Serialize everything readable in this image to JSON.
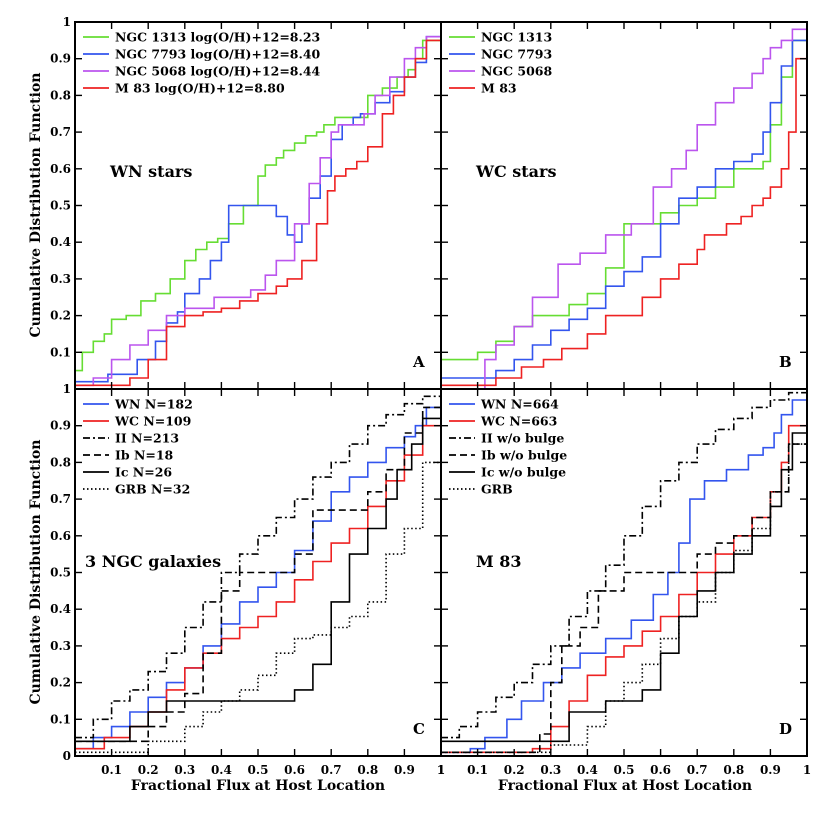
{
  "figure": {
    "ylabel": "Cumulative Distribution Function",
    "xlabel": "Fractional Flux at Host Location"
  },
  "colors": {
    "green": "#66dd33",
    "blue": "#3355ee",
    "purple": "#bb55ee",
    "red": "#ee2222",
    "black": "#000000"
  },
  "chart_data": [
    {
      "type": "line",
      "id": "A",
      "letter": "A",
      "title": "WN stars",
      "xlim": [
        0,
        1
      ],
      "ylim": [
        0,
        1
      ],
      "series": [
        {
          "name": "NGC 1313",
          "legend": "NGC 1313  log(O/H)+12=8.23",
          "color": "green",
          "dash": "solid",
          "x": [
            0,
            0.02,
            0.05,
            0.08,
            0.1,
            0.14,
            0.18,
            0.22,
            0.26,
            0.3,
            0.33,
            0.36,
            0.39,
            0.42,
            0.46,
            0.5,
            0.52,
            0.55,
            0.57,
            0.6,
            0.63,
            0.66,
            0.68,
            0.71,
            0.75,
            0.8,
            0.84,
            0.88,
            0.91,
            0.93,
            0.95,
            1
          ],
          "y": [
            0.05,
            0.1,
            0.13,
            0.15,
            0.19,
            0.2,
            0.24,
            0.26,
            0.3,
            0.35,
            0.38,
            0.4,
            0.41,
            0.45,
            0.5,
            0.58,
            0.61,
            0.63,
            0.65,
            0.67,
            0.69,
            0.7,
            0.72,
            0.74,
            0.74,
            0.8,
            0.82,
            0.85,
            0.87,
            0.9,
            0.95,
            1
          ]
        },
        {
          "name": "NGC 7793",
          "legend": "NGC 7793  log(O/H)+12=8.40",
          "color": "blue",
          "dash": "solid",
          "x": [
            0,
            0.09,
            0.17,
            0.22,
            0.25,
            0.28,
            0.3,
            0.34,
            0.37,
            0.4,
            0.42,
            0.49,
            0.52,
            0.55,
            0.58,
            0.6,
            0.62,
            0.64,
            0.67,
            0.7,
            0.73,
            0.76,
            0.78,
            0.82,
            0.86,
            0.9,
            0.93,
            0.96,
            1
          ],
          "y": [
            0.02,
            0.04,
            0.08,
            0.13,
            0.18,
            0.21,
            0.26,
            0.3,
            0.35,
            0.4,
            0.5,
            0.5,
            0.5,
            0.47,
            0.42,
            0.4,
            0.45,
            0.52,
            0.58,
            0.68,
            0.72,
            0.74,
            0.75,
            0.78,
            0.81,
            0.85,
            0.89,
            0.96,
            1
          ]
        },
        {
          "name": "NGC 5068",
          "legend": "NGC 5068  log(O/H)+12=8.44",
          "color": "purple",
          "dash": "solid",
          "x": [
            0,
            0.05,
            0.1,
            0.15,
            0.2,
            0.25,
            0.3,
            0.38,
            0.45,
            0.48,
            0.52,
            0.55,
            0.6,
            0.64,
            0.67,
            0.7,
            0.72,
            0.76,
            0.79,
            0.82,
            0.86,
            0.9,
            0.93,
            0.96,
            1
          ],
          "y": [
            0.01,
            0.03,
            0.08,
            0.12,
            0.16,
            0.2,
            0.22,
            0.25,
            0.25,
            0.27,
            0.31,
            0.35,
            0.45,
            0.56,
            0.63,
            0.7,
            0.72,
            0.72,
            0.75,
            0.8,
            0.85,
            0.9,
            0.93,
            0.96,
            1
          ]
        },
        {
          "name": "M 83",
          "legend": "M 83  log(O/H)+12=8.80",
          "color": "red",
          "dash": "solid",
          "x": [
            0,
            0.15,
            0.2,
            0.25,
            0.3,
            0.35,
            0.4,
            0.45,
            0.5,
            0.55,
            0.58,
            0.62,
            0.66,
            0.69,
            0.71,
            0.74,
            0.77,
            0.8,
            0.84,
            0.87,
            0.9,
            0.93,
            0.96,
            1
          ],
          "y": [
            0.01,
            0.03,
            0.08,
            0.17,
            0.2,
            0.21,
            0.22,
            0.24,
            0.26,
            0.28,
            0.3,
            0.35,
            0.45,
            0.54,
            0.58,
            0.6,
            0.62,
            0.66,
            0.75,
            0.8,
            0.85,
            0.9,
            0.95,
            1
          ]
        }
      ]
    },
    {
      "type": "line",
      "id": "B",
      "letter": "B",
      "title": "WC stars",
      "xlim": [
        0,
        1
      ],
      "ylim": [
        0,
        1
      ],
      "series": [
        {
          "name": "NGC 1313",
          "legend": "NGC 1313",
          "color": "green",
          "dash": "solid",
          "x": [
            0,
            0.02,
            0.1,
            0.15,
            0.2,
            0.25,
            0.3,
            0.35,
            0.4,
            0.45,
            0.5,
            0.55,
            0.6,
            0.65,
            0.7,
            0.75,
            0.8,
            0.85,
            0.88,
            0.9,
            0.93,
            0.96,
            1
          ],
          "y": [
            0.08,
            0.08,
            0.1,
            0.13,
            0.17,
            0.2,
            0.2,
            0.23,
            0.26,
            0.33,
            0.45,
            0.45,
            0.48,
            0.5,
            0.52,
            0.55,
            0.6,
            0.6,
            0.62,
            0.72,
            0.85,
            0.95,
            1
          ]
        },
        {
          "name": "NGC 7793",
          "legend": "NGC 7793",
          "color": "blue",
          "dash": "solid",
          "x": [
            0,
            0.15,
            0.2,
            0.25,
            0.3,
            0.35,
            0.4,
            0.45,
            0.5,
            0.55,
            0.6,
            0.65,
            0.7,
            0.75,
            0.8,
            0.85,
            0.88,
            0.9,
            0.93,
            0.96,
            1
          ],
          "y": [
            0.03,
            0.05,
            0.08,
            0.12,
            0.16,
            0.19,
            0.22,
            0.28,
            0.32,
            0.36,
            0.45,
            0.52,
            0.55,
            0.6,
            0.62,
            0.64,
            0.7,
            0.78,
            0.88,
            0.95,
            1
          ]
        },
        {
          "name": "NGC 5068",
          "legend": "NGC 5068",
          "color": "purple",
          "dash": "solid",
          "x": [
            0,
            0.12,
            0.15,
            0.2,
            0.25,
            0.32,
            0.38,
            0.45,
            0.52,
            0.58,
            0.63,
            0.67,
            0.7,
            0.75,
            0.8,
            0.85,
            0.88,
            0.9,
            0.93,
            0.96,
            1
          ],
          "y": [
            0,
            0.08,
            0.12,
            0.17,
            0.25,
            0.34,
            0.37,
            0.42,
            0.45,
            0.55,
            0.6,
            0.65,
            0.72,
            0.78,
            0.82,
            0.86,
            0.9,
            0.93,
            0.95,
            0.98,
            1
          ]
        },
        {
          "name": "M 83",
          "legend": "M 83",
          "color": "red",
          "dash": "solid",
          "x": [
            0,
            0.15,
            0.22,
            0.28,
            0.33,
            0.4,
            0.45,
            0.55,
            0.6,
            0.65,
            0.7,
            0.72,
            0.78,
            0.82,
            0.85,
            0.88,
            0.9,
            0.93,
            0.95,
            0.97,
            1
          ],
          "y": [
            0.01,
            0.03,
            0.06,
            0.08,
            0.11,
            0.15,
            0.2,
            0.25,
            0.3,
            0.34,
            0.38,
            0.42,
            0.45,
            0.47,
            0.5,
            0.52,
            0.55,
            0.6,
            0.7,
            0.9,
            1
          ]
        }
      ]
    },
    {
      "type": "line",
      "id": "C",
      "letter": "C",
      "title": "3 NGC galaxies",
      "xlim": [
        0,
        1
      ],
      "ylim": [
        0,
        1
      ],
      "series": [
        {
          "name": "WN",
          "legend": "WN   N=182",
          "color": "blue",
          "dash": "solid",
          "x": [
            0,
            0.05,
            0.1,
            0.15,
            0.2,
            0.25,
            0.3,
            0.35,
            0.4,
            0.45,
            0.5,
            0.55,
            0.6,
            0.65,
            0.7,
            0.75,
            0.8,
            0.85,
            0.9,
            0.93,
            0.96,
            1
          ],
          "y": [
            0.02,
            0.05,
            0.08,
            0.12,
            0.16,
            0.2,
            0.24,
            0.3,
            0.36,
            0.42,
            0.46,
            0.5,
            0.56,
            0.64,
            0.72,
            0.76,
            0.8,
            0.84,
            0.87,
            0.9,
            0.95,
            1
          ]
        },
        {
          "name": "WC",
          "legend": "WC   N=109",
          "color": "red",
          "dash": "solid",
          "x": [
            0,
            0.08,
            0.15,
            0.2,
            0.25,
            0.3,
            0.35,
            0.4,
            0.45,
            0.5,
            0.55,
            0.6,
            0.65,
            0.7,
            0.75,
            0.8,
            0.85,
            0.9,
            0.95,
            1
          ],
          "y": [
            0.02,
            0.05,
            0.08,
            0.12,
            0.18,
            0.24,
            0.28,
            0.32,
            0.35,
            0.38,
            0.42,
            0.48,
            0.53,
            0.58,
            0.62,
            0.68,
            0.75,
            0.82,
            0.9,
            1
          ]
        },
        {
          "name": "II",
          "legend": "II     N=213",
          "color": "black",
          "dash": "dashdot",
          "x": [
            0,
            0.05,
            0.1,
            0.15,
            0.2,
            0.25,
            0.3,
            0.35,
            0.4,
            0.45,
            0.5,
            0.55,
            0.6,
            0.65,
            0.7,
            0.75,
            0.8,
            0.85,
            0.9,
            0.95,
            1
          ],
          "y": [
            0.05,
            0.1,
            0.15,
            0.18,
            0.23,
            0.28,
            0.35,
            0.42,
            0.5,
            0.55,
            0.6,
            0.65,
            0.7,
            0.76,
            0.8,
            0.85,
            0.9,
            0.93,
            0.96,
            0.98,
            1
          ]
        },
        {
          "name": "Ib",
          "legend": "Ib     N=18",
          "color": "black",
          "dash": "dashed",
          "x": [
            0,
            0.15,
            0.2,
            0.25,
            0.3,
            0.35,
            0.4,
            0.45,
            0.55,
            0.6,
            0.65,
            0.7,
            0.75,
            0.8,
            0.85,
            0.9,
            0.95,
            1
          ],
          "y": [
            0.04,
            0.04,
            0.08,
            0.12,
            0.17,
            0.28,
            0.45,
            0.5,
            0.5,
            0.55,
            0.67,
            0.67,
            0.67,
            0.72,
            0.78,
            0.88,
            0.95,
            1
          ]
        },
        {
          "name": "Ic",
          "legend": "Ic      N=26",
          "color": "black",
          "dash": "solid",
          "x": [
            0,
            0.1,
            0.15,
            0.2,
            0.25,
            0.3,
            0.4,
            0.5,
            0.6,
            0.65,
            0.7,
            0.75,
            0.8,
            0.85,
            0.88,
            0.92,
            0.95,
            1
          ],
          "y": [
            0.04,
            0.04,
            0.08,
            0.12,
            0.15,
            0.15,
            0.15,
            0.15,
            0.18,
            0.25,
            0.42,
            0.55,
            0.62,
            0.7,
            0.78,
            0.85,
            0.92,
            1
          ]
        },
        {
          "name": "GRB",
          "legend": "GRB   N=32",
          "color": "black",
          "dash": "dotted",
          "x": [
            0,
            0.2,
            0.3,
            0.35,
            0.4,
            0.45,
            0.5,
            0.55,
            0.6,
            0.65,
            0.7,
            0.75,
            0.8,
            0.85,
            0.9,
            0.95,
            1
          ],
          "y": [
            0.01,
            0.04,
            0.08,
            0.12,
            0.15,
            0.18,
            0.22,
            0.28,
            0.32,
            0.33,
            0.35,
            0.38,
            0.42,
            0.55,
            0.62,
            0.8,
            1
          ]
        }
      ]
    },
    {
      "type": "line",
      "id": "D",
      "letter": "D",
      "title": "M 83",
      "xlim": [
        0,
        1
      ],
      "ylim": [
        0,
        1
      ],
      "series": [
        {
          "name": "WN",
          "legend": "WN   N=664",
          "color": "blue",
          "dash": "solid",
          "x": [
            0,
            0.08,
            0.12,
            0.18,
            0.22,
            0.28,
            0.33,
            0.38,
            0.45,
            0.52,
            0.58,
            0.62,
            0.65,
            0.68,
            0.72,
            0.78,
            0.84,
            0.88,
            0.91,
            0.93,
            0.96,
            1
          ],
          "y": [
            0.01,
            0.02,
            0.05,
            0.1,
            0.15,
            0.2,
            0.24,
            0.28,
            0.32,
            0.37,
            0.44,
            0.5,
            0.58,
            0.7,
            0.75,
            0.78,
            0.82,
            0.84,
            0.88,
            0.93,
            0.97,
            1
          ]
        },
        {
          "name": "WC",
          "legend": "WC   N=663",
          "color": "red",
          "dash": "solid",
          "x": [
            0,
            0.25,
            0.3,
            0.35,
            0.4,
            0.45,
            0.5,
            0.55,
            0.6,
            0.65,
            0.7,
            0.75,
            0.8,
            0.85,
            0.9,
            0.93,
            0.95,
            1
          ],
          "y": [
            0.01,
            0.02,
            0.08,
            0.15,
            0.22,
            0.27,
            0.3,
            0.34,
            0.38,
            0.44,
            0.5,
            0.55,
            0.6,
            0.65,
            0.72,
            0.8,
            0.9,
            1
          ]
        },
        {
          "name": "II w/o bulge",
          "legend": "II w/o bulge",
          "color": "black",
          "dash": "dashdot",
          "x": [
            0,
            0.05,
            0.1,
            0.15,
            0.2,
            0.25,
            0.3,
            0.35,
            0.4,
            0.45,
            0.5,
            0.55,
            0.6,
            0.65,
            0.7,
            0.75,
            0.8,
            0.85,
            0.9,
            0.95,
            1
          ],
          "y": [
            0.05,
            0.08,
            0.12,
            0.16,
            0.2,
            0.25,
            0.3,
            0.38,
            0.45,
            0.52,
            0.6,
            0.68,
            0.75,
            0.8,
            0.85,
            0.89,
            0.92,
            0.95,
            0.97,
            0.99,
            1
          ]
        },
        {
          "name": "Ib w/o bulge",
          "legend": "Ib w/o bulge",
          "color": "black",
          "dash": "dashed",
          "x": [
            0,
            0.27,
            0.3,
            0.33,
            0.38,
            0.43,
            0.5,
            0.58,
            0.65,
            0.7,
            0.75,
            0.8,
            0.85,
            0.9,
            0.95,
            1
          ],
          "y": [
            0.01,
            0.06,
            0.2,
            0.3,
            0.35,
            0.45,
            0.5,
            0.5,
            0.5,
            0.55,
            0.58,
            0.6,
            0.65,
            0.72,
            0.85,
            1
          ]
        },
        {
          "name": "Ic w/o bulge",
          "legend": "Ic w/o bulge",
          "color": "black",
          "dash": "solid",
          "x": [
            0,
            0.2,
            0.35,
            0.4,
            0.45,
            0.5,
            0.55,
            0.6,
            0.65,
            0.7,
            0.75,
            0.8,
            0.85,
            0.9,
            0.93,
            0.96,
            1
          ],
          "y": [
            0.04,
            0.04,
            0.12,
            0.12,
            0.15,
            0.15,
            0.18,
            0.28,
            0.38,
            0.45,
            0.5,
            0.55,
            0.6,
            0.68,
            0.78,
            0.88,
            1
          ]
        },
        {
          "name": "GRB",
          "legend": "GRB",
          "color": "black",
          "dash": "dotted",
          "x": [
            0,
            0.3,
            0.4,
            0.45,
            0.5,
            0.55,
            0.6,
            0.65,
            0.7,
            0.75,
            0.8,
            0.85,
            0.9,
            0.95,
            1
          ],
          "y": [
            0.01,
            0.03,
            0.08,
            0.15,
            0.2,
            0.25,
            0.32,
            0.38,
            0.42,
            0.5,
            0.56,
            0.62,
            0.72,
            0.85,
            1
          ]
        }
      ]
    }
  ]
}
